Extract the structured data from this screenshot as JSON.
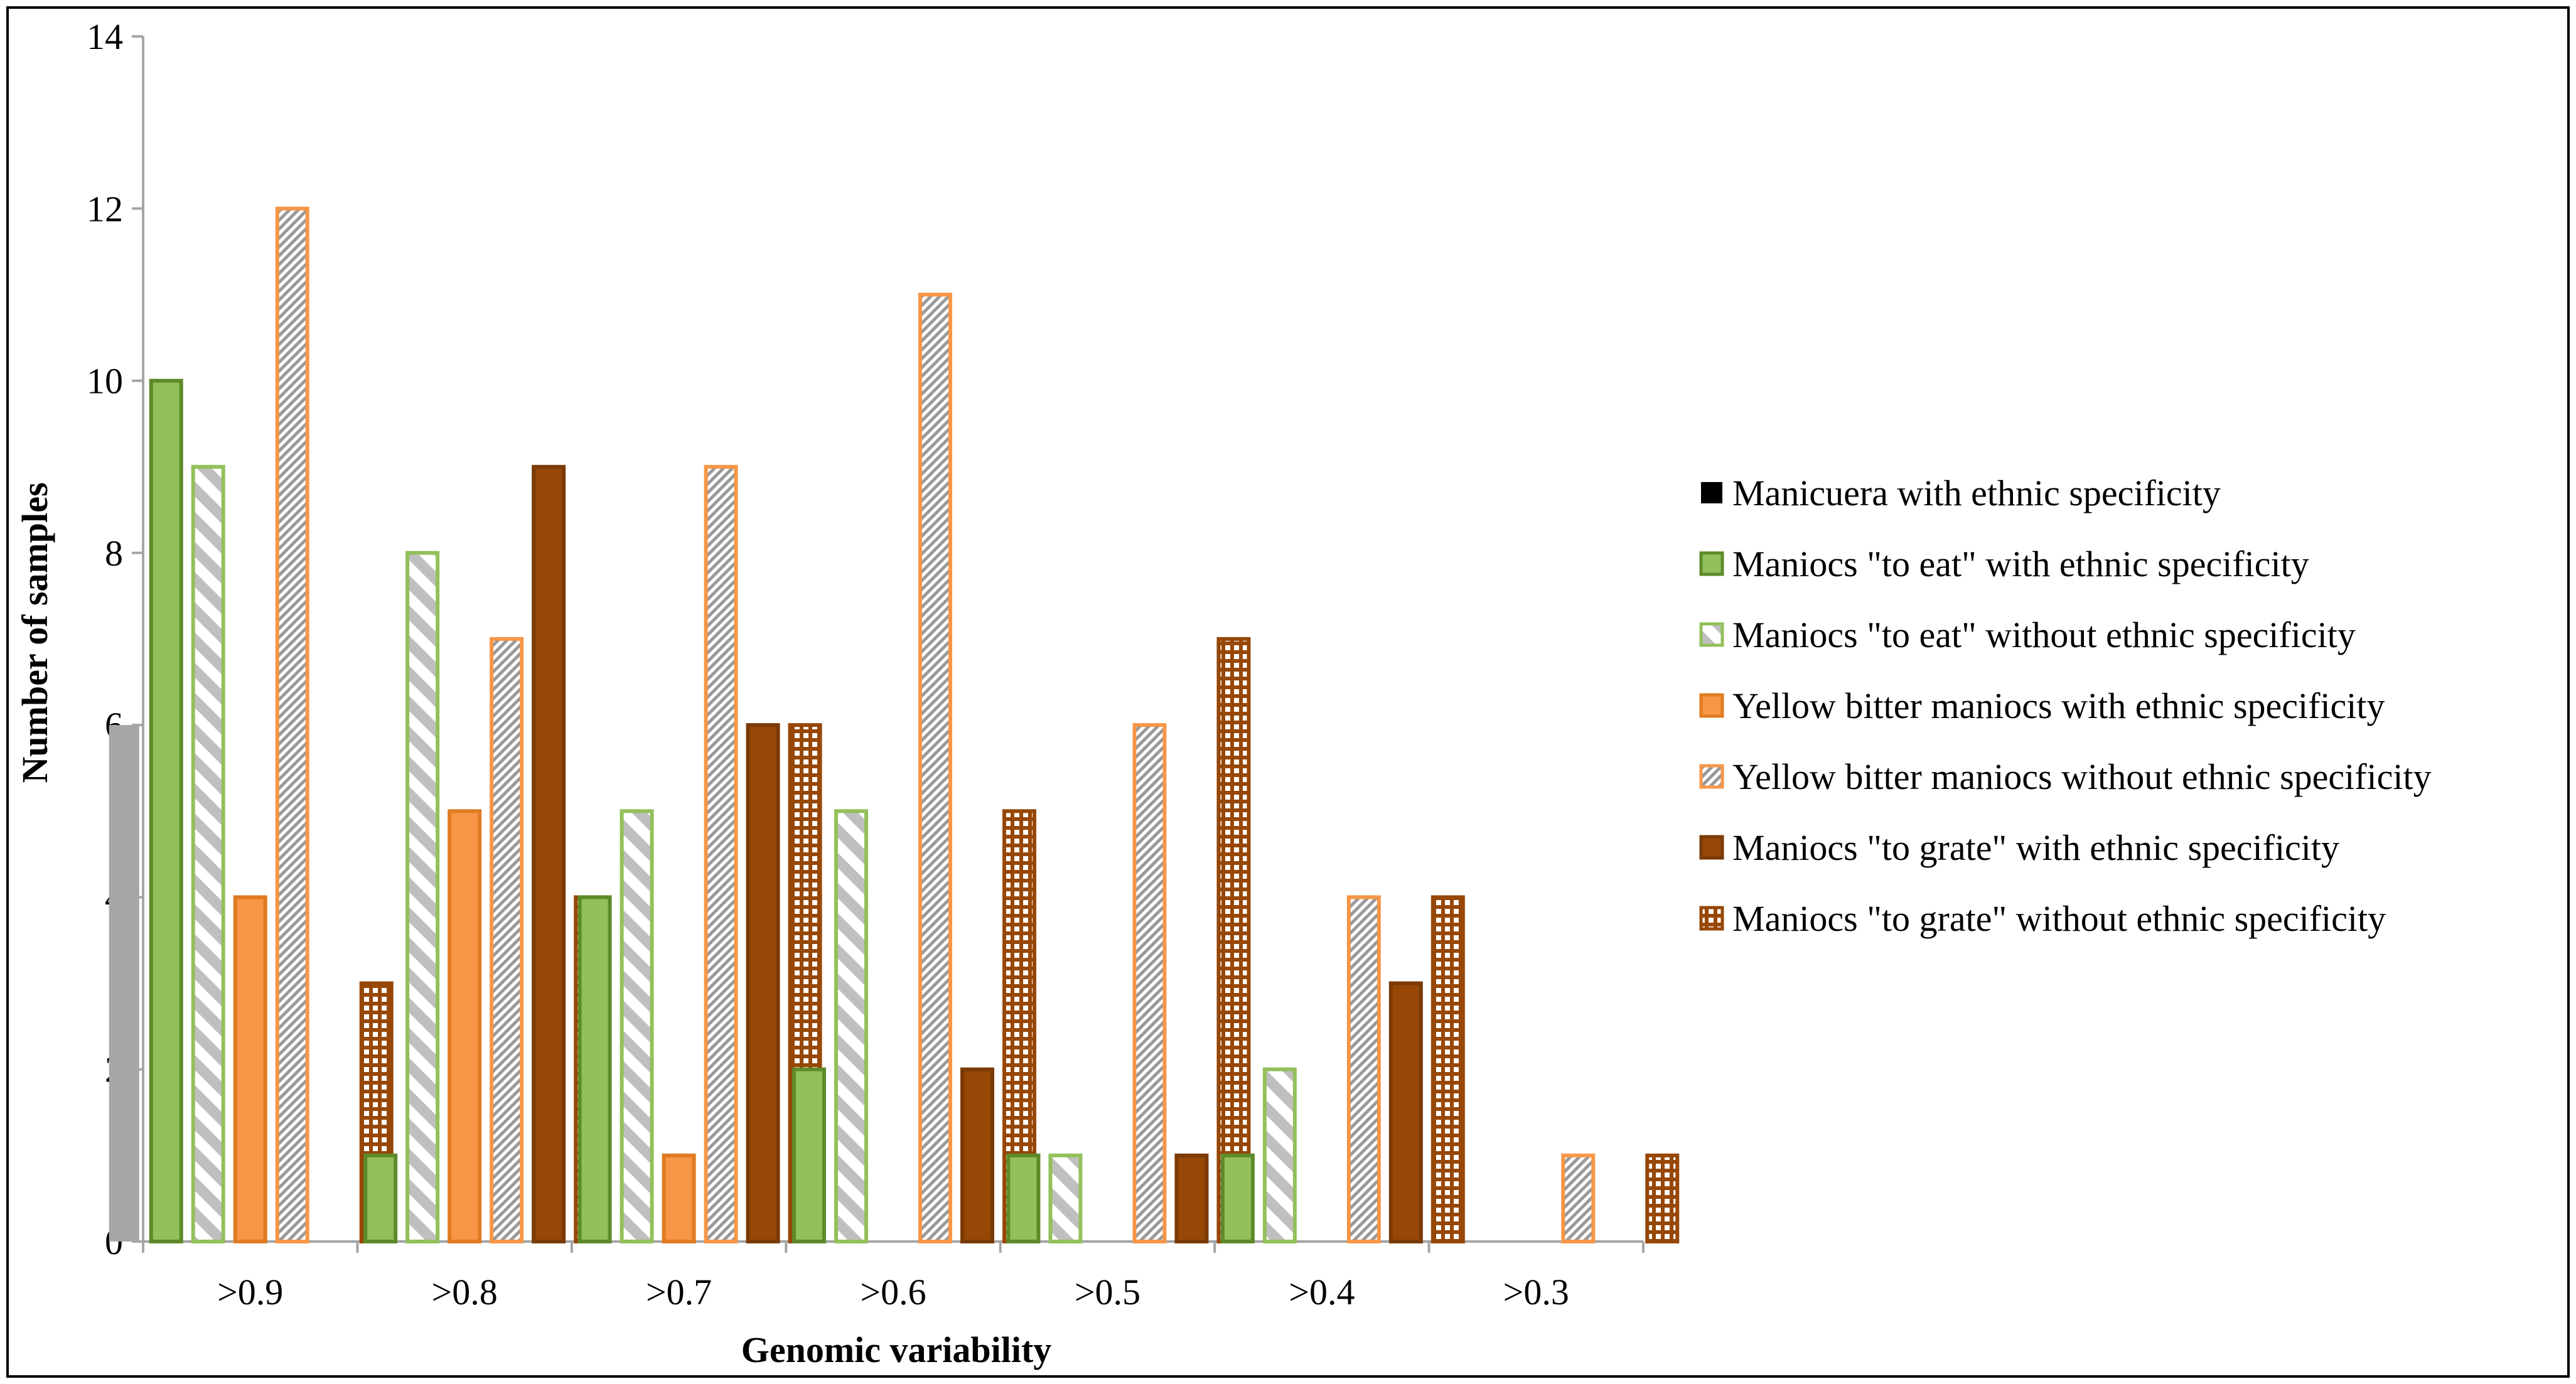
{
  "chart_data": {
    "type": "bar",
    "title": "",
    "xlabel": "Genomic variability",
    "ylabel": "Number of samples",
    "ylim": [
      0,
      14
    ],
    "yticks": [
      0,
      2,
      4,
      6,
      8,
      10,
      12,
      14
    ],
    "categories": [
      ">0.9",
      ">0.8",
      ">0.7",
      ">0.6",
      ">0.5",
      ">0.4",
      ">0.3"
    ],
    "grid": false,
    "legend_position": "right",
    "series": [
      {
        "name": "Manicuera with ethnic specificity",
        "values": [
          6,
          0,
          0,
          0,
          0,
          0,
          0
        ],
        "fill": "#a6a6a6",
        "legend_swatch": "#000000",
        "pattern": "solid"
      },
      {
        "name": "Maniocs \"to eat\" with ethnic specificity",
        "values": [
          10,
          1,
          4,
          2,
          1,
          1,
          0
        ],
        "fill": "#92c05a",
        "stroke": "#5e8a2a",
        "pattern": "solid"
      },
      {
        "name": "Maniocs \"to eat\" without ethnic specificity",
        "values": [
          9,
          8,
          5,
          5,
          1,
          2,
          0
        ],
        "fill": "#ffffff",
        "stroke": "#92c05a",
        "hatch": "#bfbfbf",
        "pattern": "diagonal"
      },
      {
        "name": "Yellow bitter maniocs with ethnic specificity",
        "values": [
          4,
          5,
          1,
          0,
          0,
          0,
          0
        ],
        "fill": "#f79646",
        "stroke": "#e07b22",
        "pattern": "solid"
      },
      {
        "name": "Yellow bitter maniocs without ethnic specificity",
        "values": [
          12,
          7,
          9,
          11,
          6,
          4,
          1
        ],
        "fill": "#ffffff",
        "stroke": "#f79646",
        "hatch": "#999999",
        "pattern": "fine-diagonal"
      },
      {
        "name": "Maniocs \"to grate\" with ethnic specificity",
        "values": [
          0,
          9,
          6,
          2,
          1,
          3,
          0
        ],
        "fill": "#974706",
        "stroke": "#7a3a05",
        "pattern": "solid"
      },
      {
        "name": "Maniocs \"to grate\" without ethnic specificity",
        "values": [
          3,
          4,
          6,
          5,
          7,
          4,
          1
        ],
        "fill": "#ffffff",
        "stroke": "#974706",
        "hatch": "#974706",
        "pattern": "grid"
      }
    ]
  }
}
